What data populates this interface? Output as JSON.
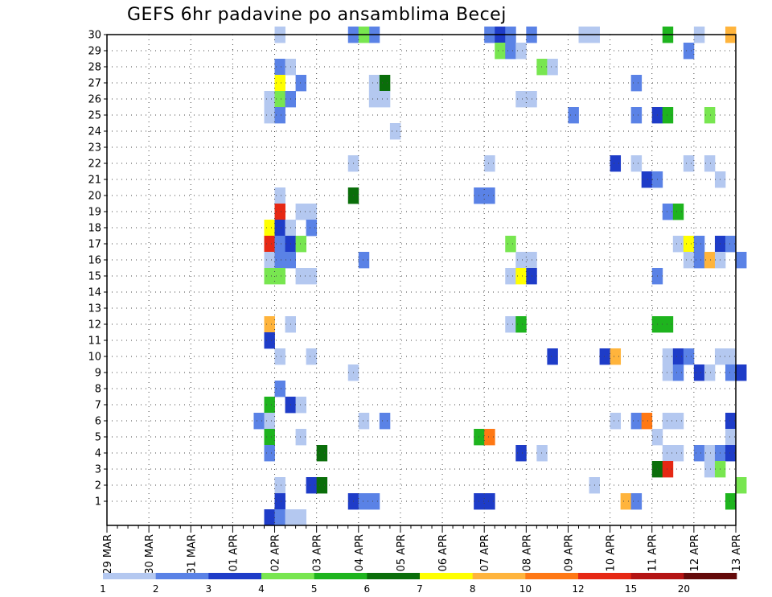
{
  "chart_data": {
    "type": "heatmap",
    "title": "GEFS 6hr padavine po ansamblima Becej",
    "x_tick_labels": [
      "29 MAR",
      "30 MAR",
      "31 MAR",
      "01 APR",
      "02 APR",
      "03 APR",
      "04 APR",
      "05 APR",
      "06 APR",
      "07 APR",
      "08 APR",
      "09 APR",
      "10 APR",
      "11 APR",
      "12 APR",
      "13 APR"
    ],
    "y_tick_labels": [
      "1",
      "2",
      "3",
      "4",
      "5",
      "6",
      "7",
      "8",
      "9",
      "10",
      "11",
      "12",
      "13",
      "14",
      "15",
      "16",
      "17",
      "18",
      "19",
      "20",
      "21",
      "22",
      "23",
      "24",
      "25",
      "26",
      "27",
      "28",
      "29",
      "30"
    ],
    "x_range": [
      "29 MAR 00",
      "13 APR 00"
    ],
    "y_range": [
      0,
      30
    ],
    "grid": true,
    "color_scale": {
      "breaks": [
        "1",
        "2",
        "3",
        "4",
        "5",
        "6",
        "7",
        "8",
        "10",
        "12",
        "15",
        "20"
      ],
      "colors": [
        "#b4c8f0",
        "#5a82e6",
        "#1e3cc8",
        "#78e650",
        "#1eb41e",
        "#0a6e0a",
        "#ffff00",
        "#ffb43c",
        "#ff7814",
        "#e62814",
        "#b41414",
        "#640a0a"
      ]
    },
    "cells": [
      [
        16,
        30,
        0
      ],
      [
        23,
        30,
        1
      ],
      [
        25,
        30,
        1
      ],
      [
        24,
        30,
        3
      ],
      [
        36,
        30,
        1
      ],
      [
        37,
        30,
        2
      ],
      [
        38,
        30,
        1
      ],
      [
        40,
        30,
        1
      ],
      [
        45,
        30,
        0
      ],
      [
        46,
        30,
        0
      ],
      [
        53,
        30,
        4
      ],
      [
        56,
        30,
        0
      ],
      [
        59,
        30,
        7
      ],
      [
        37,
        29,
        3
      ],
      [
        38,
        29,
        1
      ],
      [
        39,
        29,
        0
      ],
      [
        55,
        29,
        1
      ],
      [
        16,
        28,
        1
      ],
      [
        17,
        28,
        0
      ],
      [
        41,
        28,
        3
      ],
      [
        42,
        28,
        0
      ],
      [
        16,
        27,
        6
      ],
      [
        18,
        27,
        1
      ],
      [
        25,
        27,
        0
      ],
      [
        26,
        27,
        5
      ],
      [
        50,
        27,
        1
      ],
      [
        15,
        26,
        0
      ],
      [
        16,
        26,
        3
      ],
      [
        17,
        26,
        1
      ],
      [
        25,
        26,
        0
      ],
      [
        26,
        26,
        0
      ],
      [
        39,
        26,
        0
      ],
      [
        40,
        26,
        0
      ],
      [
        15,
        25,
        0
      ],
      [
        16,
        25,
        1
      ],
      [
        44,
        25,
        1
      ],
      [
        50,
        25,
        1
      ],
      [
        52,
        25,
        2
      ],
      [
        53,
        25,
        4
      ],
      [
        57,
        25,
        3
      ],
      [
        27,
        24,
        0
      ],
      [
        23,
        22,
        0
      ],
      [
        36,
        22,
        0
      ],
      [
        48,
        22,
        2
      ],
      [
        50,
        22,
        0
      ],
      [
        55,
        22,
        0
      ],
      [
        57,
        22,
        0
      ],
      [
        51,
        21,
        2
      ],
      [
        52,
        21,
        1
      ],
      [
        58,
        21,
        0
      ],
      [
        16,
        20,
        0
      ],
      [
        23,
        20,
        5
      ],
      [
        35,
        20,
        1
      ],
      [
        36,
        20,
        1
      ],
      [
        16,
        19,
        9
      ],
      [
        18,
        19,
        0
      ],
      [
        19,
        19,
        0
      ],
      [
        53,
        19,
        1
      ],
      [
        54,
        19,
        4
      ],
      [
        15,
        18,
        6
      ],
      [
        16,
        18,
        2
      ],
      [
        17,
        18,
        0
      ],
      [
        19,
        18,
        1
      ],
      [
        15,
        17,
        9
      ],
      [
        16,
        17,
        1
      ],
      [
        17,
        17,
        2
      ],
      [
        18,
        17,
        3
      ],
      [
        38,
        17,
        3
      ],
      [
        54,
        17,
        0
      ],
      [
        55,
        17,
        6
      ],
      [
        56,
        17,
        1
      ],
      [
        58,
        17,
        2
      ],
      [
        59,
        17,
        1
      ],
      [
        15,
        16,
        0
      ],
      [
        16,
        16,
        1
      ],
      [
        17,
        16,
        1
      ],
      [
        24,
        16,
        1
      ],
      [
        39,
        16,
        0
      ],
      [
        40,
        16,
        0
      ],
      [
        55,
        16,
        0
      ],
      [
        56,
        16,
        1
      ],
      [
        57,
        16,
        7
      ],
      [
        58,
        16,
        0
      ],
      [
        60,
        16,
        1
      ],
      [
        15,
        15,
        3
      ],
      [
        16,
        15,
        3
      ],
      [
        18,
        15,
        0
      ],
      [
        19,
        15,
        0
      ],
      [
        38,
        15,
        0
      ],
      [
        39,
        15,
        6
      ],
      [
        40,
        15,
        2
      ],
      [
        52,
        15,
        1
      ],
      [
        15,
        12,
        7
      ],
      [
        17,
        12,
        0
      ],
      [
        38,
        12,
        0
      ],
      [
        39,
        12,
        4
      ],
      [
        52,
        12,
        4
      ],
      [
        53,
        12,
        4
      ],
      [
        15,
        11,
        2
      ],
      [
        16,
        10,
        0
      ],
      [
        19,
        10,
        0
      ],
      [
        42,
        10,
        2
      ],
      [
        47,
        10,
        2
      ],
      [
        48,
        10,
        7
      ],
      [
        53,
        10,
        0
      ],
      [
        54,
        10,
        2
      ],
      [
        55,
        10,
        1
      ],
      [
        58,
        10,
        0
      ],
      [
        59,
        10,
        0
      ],
      [
        23,
        9,
        0
      ],
      [
        53,
        9,
        0
      ],
      [
        54,
        9,
        1
      ],
      [
        56,
        9,
        2
      ],
      [
        57,
        9,
        0
      ],
      [
        59,
        9,
        1
      ],
      [
        60,
        9,
        2
      ],
      [
        16,
        8,
        1
      ],
      [
        15,
        7,
        4
      ],
      [
        17,
        7,
        2
      ],
      [
        18,
        7,
        0
      ],
      [
        14,
        6,
        1
      ],
      [
        15,
        6,
        0
      ],
      [
        24,
        6,
        0
      ],
      [
        26,
        6,
        1
      ],
      [
        48,
        6,
        0
      ],
      [
        50,
        6,
        1
      ],
      [
        51,
        6,
        8
      ],
      [
        53,
        6,
        0
      ],
      [
        54,
        6,
        0
      ],
      [
        59,
        6,
        2
      ],
      [
        15,
        5,
        4
      ],
      [
        18,
        5,
        0
      ],
      [
        35,
        5,
        4
      ],
      [
        36,
        5,
        8
      ],
      [
        52,
        5,
        0
      ],
      [
        59,
        5,
        0
      ],
      [
        15,
        4,
        1
      ],
      [
        20,
        4,
        5
      ],
      [
        39,
        4,
        2
      ],
      [
        41,
        4,
        0
      ],
      [
        53,
        4,
        0
      ],
      [
        54,
        4,
        0
      ],
      [
        56,
        4,
        1
      ],
      [
        57,
        4,
        0
      ],
      [
        58,
        4,
        1
      ],
      [
        59,
        4,
        2
      ],
      [
        52,
        3,
        5
      ],
      [
        53,
        3,
        9
      ],
      [
        57,
        3,
        0
      ],
      [
        58,
        3,
        3
      ],
      [
        16,
        2,
        0
      ],
      [
        19,
        2,
        2
      ],
      [
        20,
        2,
        5
      ],
      [
        46,
        2,
        0
      ],
      [
        60,
        2,
        3
      ],
      [
        16,
        1,
        2
      ],
      [
        23,
        1,
        2
      ],
      [
        24,
        1,
        1
      ],
      [
        25,
        1,
        1
      ],
      [
        35,
        1,
        2
      ],
      [
        36,
        1,
        2
      ],
      [
        49,
        1,
        7
      ],
      [
        50,
        1,
        1
      ],
      [
        59,
        1,
        4
      ],
      [
        15,
        0,
        2
      ],
      [
        16,
        0,
        1
      ],
      [
        17,
        0,
        0
      ],
      [
        18,
        0,
        0
      ]
    ]
  }
}
